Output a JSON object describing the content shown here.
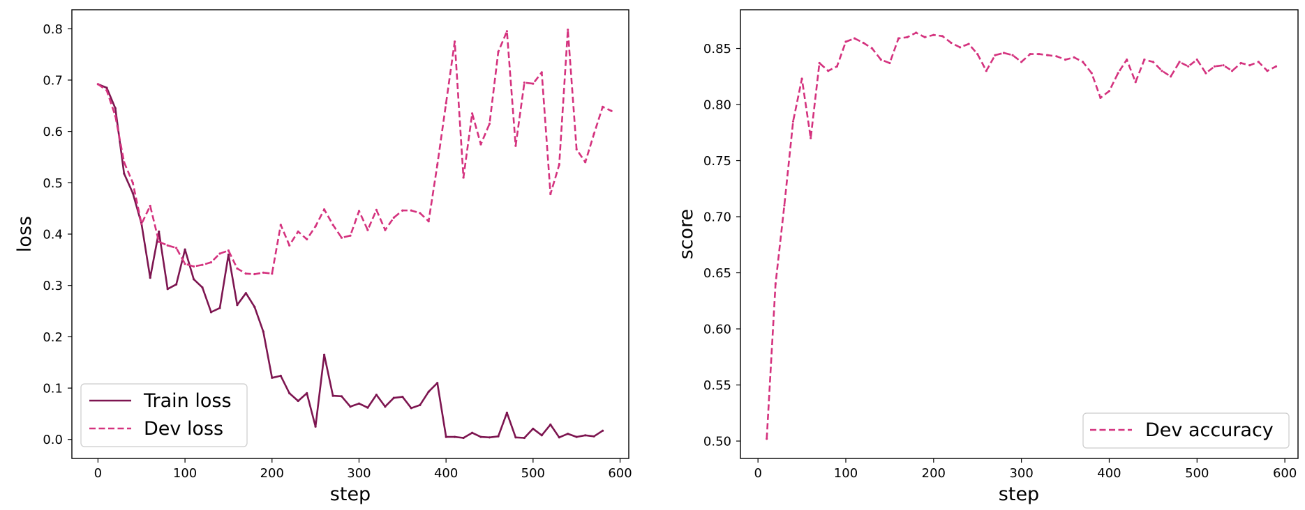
{
  "chart_data": [
    {
      "type": "line",
      "title": "",
      "xlabel": "step",
      "ylabel": "loss",
      "xlim": [
        -30,
        610
      ],
      "ylim": [
        -0.037,
        0.837
      ],
      "xticks": [
        0,
        100,
        200,
        300,
        400,
        500,
        600
      ],
      "yticks": [
        0.0,
        0.1,
        0.2,
        0.3,
        0.4,
        0.5,
        0.6,
        0.7,
        0.8
      ],
      "ytick_decimals": 1,
      "grid": false,
      "legend_position": "lower left",
      "series": [
        {
          "name": "Train loss",
          "style": "solid",
          "color": "#7d1550",
          "x": [
            0,
            10,
            20,
            30,
            40,
            50,
            60,
            70,
            80,
            90,
            100,
            110,
            120,
            130,
            140,
            150,
            160,
            170,
            180,
            190,
            200,
            210,
            220,
            230,
            240,
            250,
            260,
            270,
            280,
            290,
            300,
            310,
            320,
            330,
            340,
            350,
            360,
            370,
            380,
            390,
            400,
            410,
            420,
            430,
            440,
            450,
            460,
            470,
            480,
            490,
            500,
            510,
            520,
            530,
            540,
            550,
            560,
            570,
            580
          ],
          "y": [
            0.692,
            0.685,
            0.645,
            0.518,
            0.48,
            0.42,
            0.315,
            0.405,
            0.293,
            0.302,
            0.37,
            0.312,
            0.296,
            0.248,
            0.256,
            0.36,
            0.262,
            0.285,
            0.258,
            0.21,
            0.12,
            0.124,
            0.09,
            0.075,
            0.09,
            0.025,
            0.165,
            0.085,
            0.084,
            0.064,
            0.07,
            0.062,
            0.087,
            0.064,
            0.081,
            0.083,
            0.061,
            0.067,
            0.093,
            0.11,
            0.005,
            0.005,
            0.003,
            0.013,
            0.005,
            0.004,
            0.006,
            0.052,
            0.004,
            0.003,
            0.021,
            0.008,
            0.029,
            0.004,
            0.011,
            0.005,
            0.008,
            0.006,
            0.017
          ]
        },
        {
          "name": "Dev loss",
          "style": "dashed",
          "color": "#d4327e",
          "x": [
            0,
            10,
            20,
            30,
            40,
            50,
            60,
            70,
            80,
            90,
            100,
            110,
            120,
            130,
            140,
            150,
            160,
            170,
            180,
            190,
            200,
            210,
            220,
            230,
            240,
            250,
            260,
            270,
            280,
            290,
            300,
            310,
            320,
            330,
            340,
            350,
            360,
            370,
            380,
            390,
            400,
            410,
            420,
            430,
            440,
            450,
            460,
            470,
            480,
            490,
            500,
            510,
            520,
            530,
            540,
            550,
            560,
            570,
            580,
            590
          ],
          "y": [
            0.692,
            0.68,
            0.63,
            0.54,
            0.5,
            0.42,
            0.455,
            0.385,
            0.378,
            0.373,
            0.342,
            0.337,
            0.34,
            0.345,
            0.362,
            0.368,
            0.333,
            0.323,
            0.322,
            0.325,
            0.323,
            0.418,
            0.378,
            0.405,
            0.39,
            0.415,
            0.448,
            0.418,
            0.393,
            0.397,
            0.445,
            0.408,
            0.447,
            0.408,
            0.432,
            0.446,
            0.446,
            0.441,
            0.425,
            0.535,
            0.655,
            0.775,
            0.51,
            0.635,
            0.575,
            0.615,
            0.755,
            0.795,
            0.572,
            0.695,
            0.693,
            0.715,
            0.478,
            0.535,
            0.798,
            0.565,
            0.54,
            0.595,
            0.648,
            0.64
          ]
        }
      ]
    },
    {
      "type": "line",
      "title": "",
      "xlabel": "step",
      "ylabel": "score",
      "xlim": [
        -20,
        615
      ],
      "ylim": [
        0.4845,
        0.8845
      ],
      "xticks": [
        0,
        100,
        200,
        300,
        400,
        500,
        600
      ],
      "yticks": [
        0.5,
        0.55,
        0.6,
        0.65,
        0.7,
        0.75,
        0.8,
        0.85
      ],
      "ytick_decimals": 2,
      "grid": false,
      "legend_position": "lower right",
      "series": [
        {
          "name": "Dev accuracy",
          "style": "dashed",
          "color": "#d4327e",
          "x": [
            10,
            20,
            30,
            40,
            50,
            60,
            70,
            80,
            90,
            100,
            110,
            120,
            130,
            140,
            150,
            160,
            170,
            180,
            190,
            200,
            210,
            220,
            230,
            240,
            250,
            260,
            270,
            280,
            290,
            300,
            310,
            320,
            330,
            340,
            350,
            360,
            370,
            380,
            390,
            400,
            410,
            420,
            430,
            440,
            450,
            460,
            470,
            480,
            490,
            500,
            510,
            520,
            530,
            540,
            550,
            560,
            570,
            580,
            590
          ],
          "y": [
            0.502,
            0.64,
            0.71,
            0.785,
            0.823,
            0.77,
            0.837,
            0.83,
            0.834,
            0.856,
            0.859,
            0.855,
            0.85,
            0.84,
            0.837,
            0.859,
            0.86,
            0.864,
            0.86,
            0.862,
            0.861,
            0.855,
            0.851,
            0.854,
            0.845,
            0.83,
            0.844,
            0.846,
            0.844,
            0.838,
            0.845,
            0.845,
            0.844,
            0.843,
            0.84,
            0.842,
            0.838,
            0.828,
            0.806,
            0.812,
            0.828,
            0.84,
            0.82,
            0.84,
            0.838,
            0.83,
            0.825,
            0.838,
            0.834,
            0.84,
            0.828,
            0.834,
            0.835,
            0.83,
            0.837,
            0.835,
            0.838,
            0.83,
            0.834
          ]
        }
      ]
    }
  ]
}
